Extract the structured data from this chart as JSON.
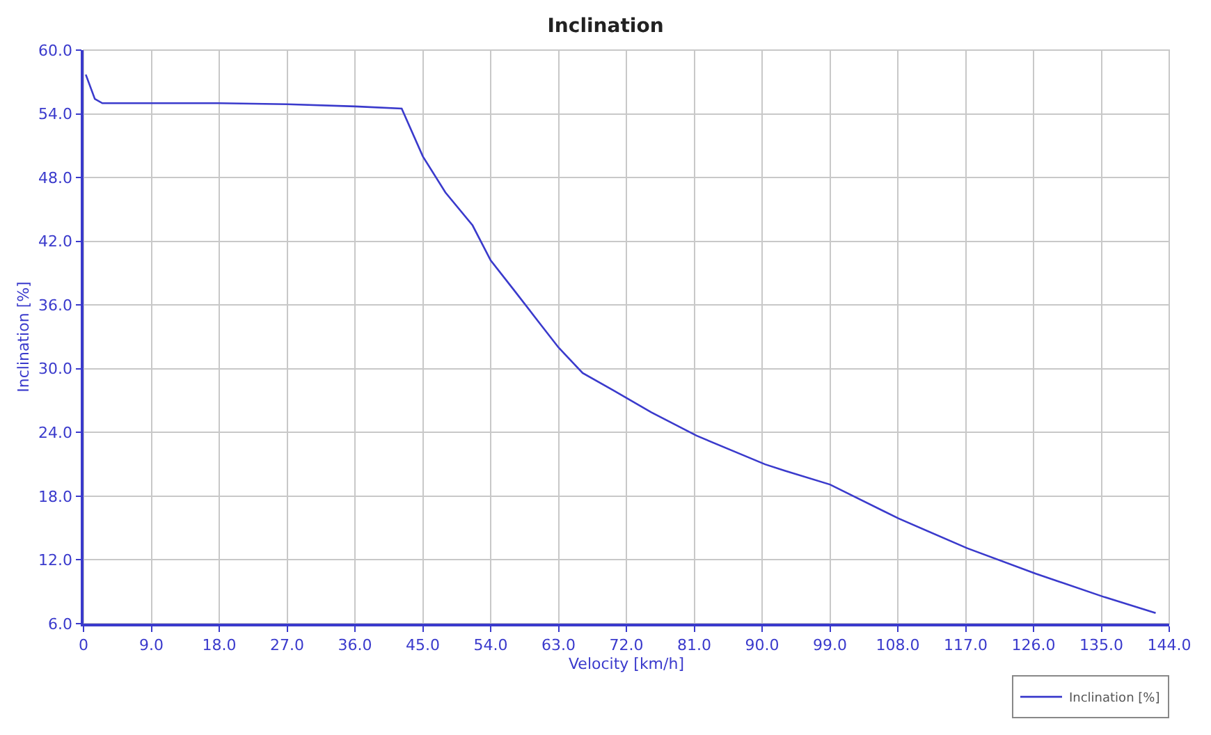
{
  "chart_data": {
    "type": "line",
    "title": "Inclination",
    "xlabel": "Velocity [km/h]",
    "ylabel": "Inclination [%]",
    "series": [
      {
        "name": "Inclination [%]",
        "color": "#3a3acc",
        "x": [
          0.3,
          1.5,
          2.5,
          9,
          18,
          27,
          36,
          42.2,
          45,
          48,
          51.6,
          54,
          57.1,
          60.7,
          63,
          66.2,
          70.2,
          75.3,
          81.3,
          90.4,
          93,
          99,
          108.1,
          117.2,
          126.3,
          135.4,
          142.2
        ],
        "values": [
          57.7,
          55.4,
          55.0,
          55.0,
          55.0,
          54.9,
          54.7,
          54.5,
          50.0,
          46.6,
          43.5,
          40.2,
          37.4,
          34.1,
          32.0,
          29.6,
          28.0,
          25.9,
          23.7,
          21.0,
          20.4,
          19.1,
          15.9,
          13.1,
          10.7,
          8.5,
          7.0
        ]
      }
    ],
    "xlim": [
      0,
      144
    ],
    "xticks": [
      {
        "value": 0,
        "label": "0"
      },
      {
        "value": 9,
        "label": "9.0"
      },
      {
        "value": 18,
        "label": "18.0"
      },
      {
        "value": 27,
        "label": "27.0"
      },
      {
        "value": 36,
        "label": "36.0"
      },
      {
        "value": 45,
        "label": "45.0"
      },
      {
        "value": 54,
        "label": "54.0"
      },
      {
        "value": 63,
        "label": "63.0"
      },
      {
        "value": 72,
        "label": "72.0"
      },
      {
        "value": 81,
        "label": "81.0"
      },
      {
        "value": 90,
        "label": "90.0"
      },
      {
        "value": 99,
        "label": "99.0"
      },
      {
        "value": 108,
        "label": "108.0"
      },
      {
        "value": 117,
        "label": "117.0"
      },
      {
        "value": 126,
        "label": "126.0"
      },
      {
        "value": 135,
        "label": "135.0"
      },
      {
        "value": 144,
        "label": "144.0"
      }
    ],
    "ylim": [
      6,
      60
    ],
    "yticks": [
      {
        "value": 6,
        "label": "6.0"
      },
      {
        "value": 12,
        "label": "12.0"
      },
      {
        "value": 18,
        "label": "18.0"
      },
      {
        "value": 24,
        "label": "24.0"
      },
      {
        "value": 30,
        "label": "30.0"
      },
      {
        "value": 36,
        "label": "36.0"
      },
      {
        "value": 42,
        "label": "42.0"
      },
      {
        "value": 48,
        "label": "48.0"
      },
      {
        "value": 54,
        "label": "54.0"
      },
      {
        "value": 60,
        "label": "60.0"
      }
    ],
    "grid": true,
    "legend": "bottom right",
    "marker": "none",
    "line_style": "solid"
  }
}
